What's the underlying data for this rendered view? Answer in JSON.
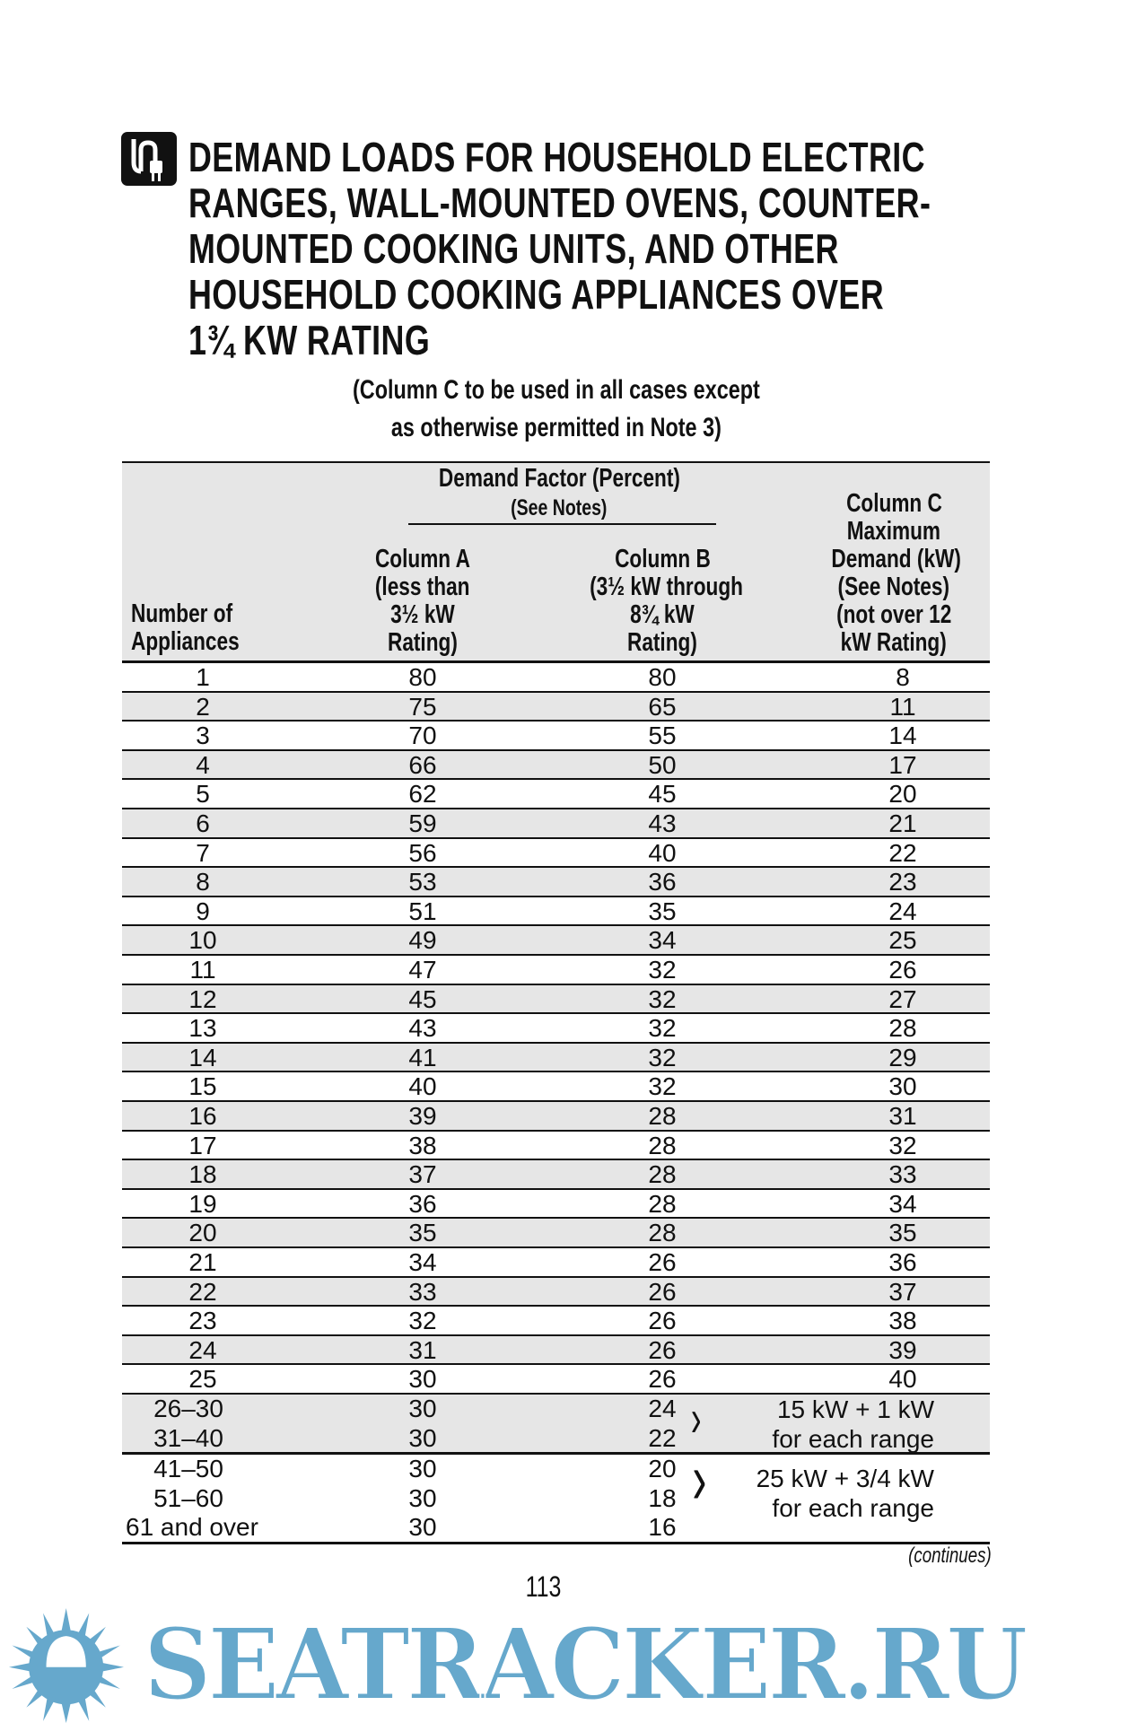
{
  "title_lines": [
    "DEMAND LOADS FOR HOUSEHOLD ELECTRIC",
    "RANGES, WALL-MOUNTED OVENS, COUNTER-",
    "MOUNTED COOKING UNITS, AND OTHER",
    "HOUSEHOLD COOKING APPLIANCES OVER",
    "1¾ KW RATING"
  ],
  "icon": "electric-plug-icon",
  "subtitle_lines": [
    "(Column C to be used in all cases except",
    "as otherwise permitted in Note 3)"
  ],
  "table": {
    "group_header": "Demand Factor (Percent)",
    "group_header_note": "(See Notes)",
    "col_number": [
      "Number of",
      "Appliances"
    ],
    "col_a": [
      "Column A",
      "(less than",
      "3½ kW",
      "Rating)"
    ],
    "col_b": [
      "Column B",
      "(3½ kW through",
      "8¾ kW",
      "Rating)"
    ],
    "col_c": [
      "Column C",
      "Maximum",
      "Demand (kW)",
      "(See Notes)",
      "(not over 12",
      "kW Rating)"
    ],
    "rows": [
      [
        "1",
        "80",
        "80",
        "8"
      ],
      [
        "2",
        "75",
        "65",
        "11"
      ],
      [
        "3",
        "70",
        "55",
        "14"
      ],
      [
        "4",
        "66",
        "50",
        "17"
      ],
      [
        "5",
        "62",
        "45",
        "20"
      ],
      [
        "6",
        "59",
        "43",
        "21"
      ],
      [
        "7",
        "56",
        "40",
        "22"
      ],
      [
        "8",
        "53",
        "36",
        "23"
      ],
      [
        "9",
        "51",
        "35",
        "24"
      ],
      [
        "10",
        "49",
        "34",
        "25"
      ],
      [
        "11",
        "47",
        "32",
        "26"
      ],
      [
        "12",
        "45",
        "32",
        "27"
      ],
      [
        "13",
        "43",
        "32",
        "28"
      ],
      [
        "14",
        "41",
        "32",
        "29"
      ],
      [
        "15",
        "40",
        "32",
        "30"
      ],
      [
        "16",
        "39",
        "28",
        "31"
      ],
      [
        "17",
        "38",
        "28",
        "32"
      ],
      [
        "18",
        "37",
        "28",
        "33"
      ],
      [
        "19",
        "36",
        "28",
        "34"
      ],
      [
        "20",
        "35",
        "28",
        "35"
      ],
      [
        "21",
        "34",
        "26",
        "36"
      ],
      [
        "22",
        "33",
        "26",
        "37"
      ],
      [
        "23",
        "32",
        "26",
        "38"
      ],
      [
        "24",
        "31",
        "26",
        "39"
      ],
      [
        "25",
        "30",
        "26",
        "40"
      ]
    ],
    "groups": [
      {
        "rows": [
          [
            "26–30",
            "30",
            "24"
          ],
          [
            "31–40",
            "30",
            "22"
          ]
        ],
        "note": [
          "15 kW + 1 kW",
          "for each range"
        ]
      },
      {
        "rows": [
          [
            "41–50",
            "30",
            "20"
          ],
          [
            "51–60",
            "30",
            "18"
          ],
          [
            "61 and over",
            "30",
            "16"
          ]
        ],
        "note": [
          "25 kW + 3/4 kW",
          "for each range"
        ]
      }
    ]
  },
  "continues": "(continues)",
  "page_number": "113",
  "watermark": "SEATRACKER.RU",
  "colors": {
    "stripe": "#e6e6e6",
    "watermark": "#66a8cc"
  }
}
